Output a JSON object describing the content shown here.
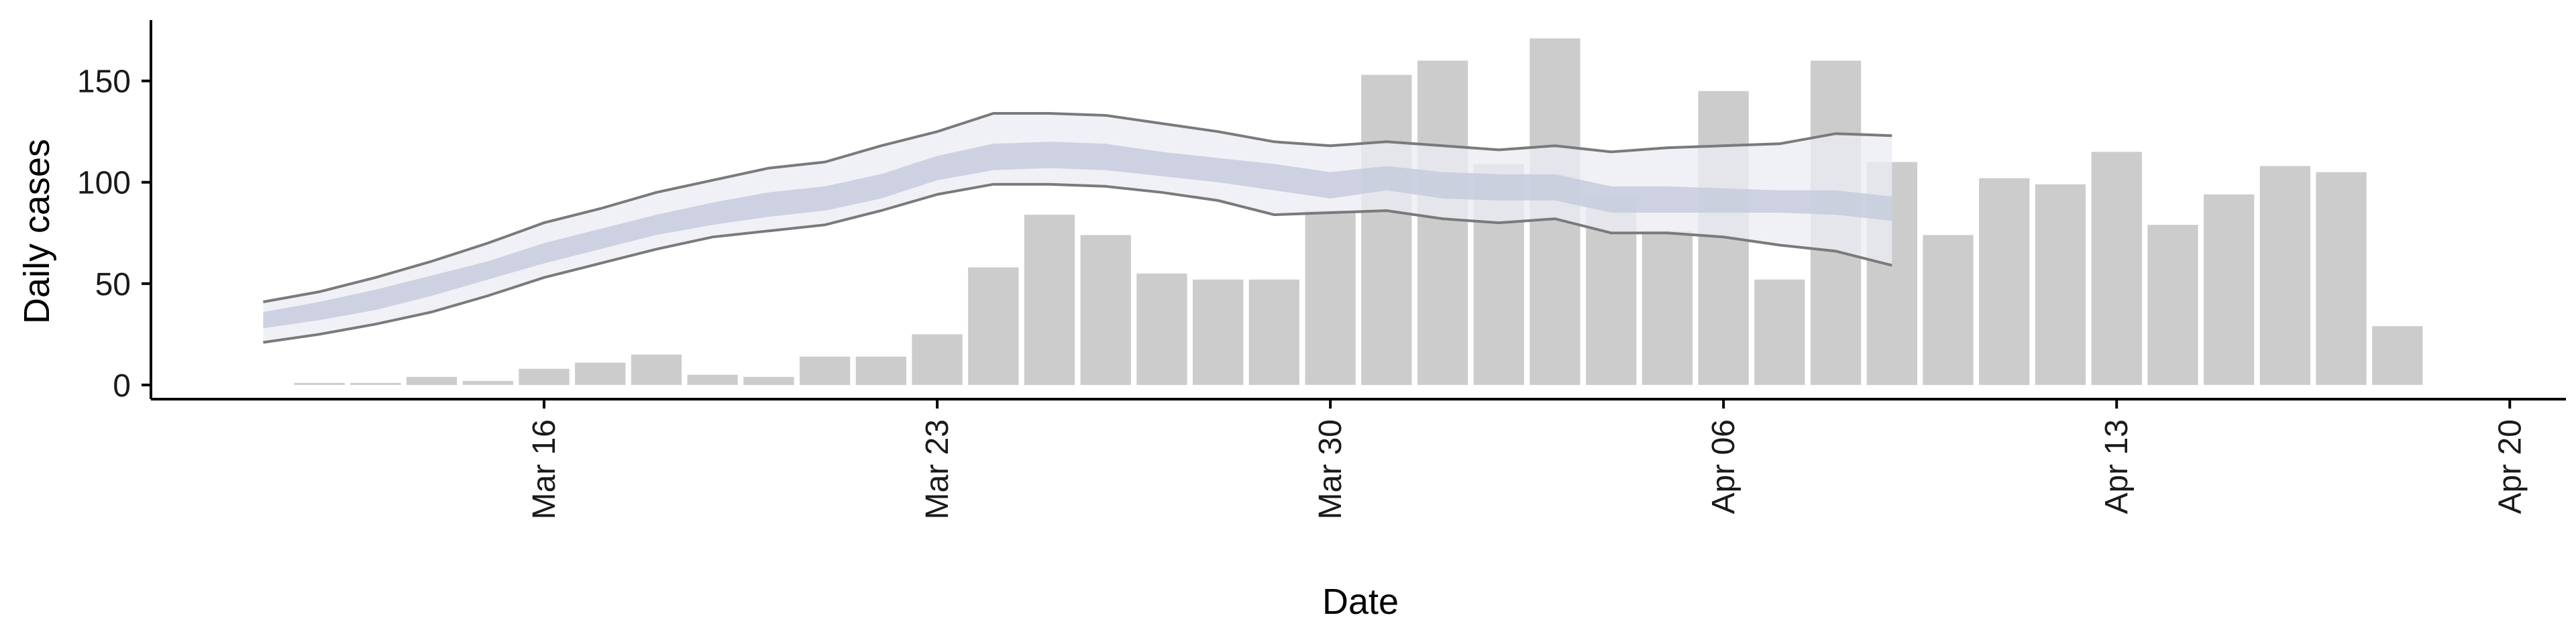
{
  "chart_data": {
    "type": "bar",
    "xlabel": "Date",
    "ylabel": "Daily cases",
    "ylim": [
      -7,
      180
    ],
    "x_axis_type": "date",
    "x_range": [
      "2020-03-09",
      "2020-04-21"
    ],
    "x_ticks": [
      {
        "date": "2020-03-16",
        "label": "Mar 16"
      },
      {
        "date": "2020-03-23",
        "label": "Mar 23"
      },
      {
        "date": "2020-03-30",
        "label": "Mar 30"
      },
      {
        "date": "2020-04-06",
        "label": "Apr 06"
      },
      {
        "date": "2020-04-13",
        "label": "Apr 13"
      },
      {
        "date": "2020-04-20",
        "label": "Apr 20"
      }
    ],
    "y_ticks": [
      0,
      50,
      100,
      150
    ],
    "grid": false,
    "colors": {
      "bars": "#cccccc",
      "outer_band": "#ecedf3",
      "inner_band": "#c7cbdd",
      "bound_lines": "#7a7a7a",
      "axis": "#000000"
    },
    "series": [
      {
        "kind": "bar",
        "x": [
          "2020-03-12",
          "2020-03-13",
          "2020-03-14",
          "2020-03-15",
          "2020-03-16",
          "2020-03-17",
          "2020-03-18",
          "2020-03-19",
          "2020-03-20",
          "2020-03-21",
          "2020-03-22",
          "2020-03-23",
          "2020-03-24",
          "2020-03-25",
          "2020-03-26",
          "2020-03-27",
          "2020-03-28",
          "2020-03-29",
          "2020-03-30",
          "2020-03-31",
          "2020-04-01",
          "2020-04-02",
          "2020-04-03",
          "2020-04-04",
          "2020-04-05",
          "2020-04-06",
          "2020-04-07",
          "2020-04-08",
          "2020-04-09",
          "2020-04-10",
          "2020-04-11",
          "2020-04-12",
          "2020-04-13",
          "2020-04-14",
          "2020-04-15",
          "2020-04-16",
          "2020-04-17",
          "2020-04-18",
          "2020-04-19"
        ],
        "values": [
          1,
          1,
          4,
          2,
          8,
          11,
          15,
          5,
          4,
          14,
          14,
          25,
          58,
          84,
          74,
          55,
          52,
          52,
          86,
          153,
          160,
          109,
          171,
          93,
          76,
          145,
          52,
          160,
          110,
          74,
          102,
          99,
          115,
          79,
          94,
          108,
          105,
          29,
          null
        ]
      },
      {
        "kind": "band",
        "x": [
          "2020-03-11",
          "2020-03-12",
          "2020-03-13",
          "2020-03-14",
          "2020-03-15",
          "2020-03-16",
          "2020-03-17",
          "2020-03-18",
          "2020-03-19",
          "2020-03-20",
          "2020-03-21",
          "2020-03-22",
          "2020-03-23",
          "2020-03-24",
          "2020-03-25",
          "2020-03-26",
          "2020-03-27",
          "2020-03-28",
          "2020-03-29",
          "2020-03-30",
          "2020-03-31",
          "2020-04-01",
          "2020-04-02",
          "2020-04-03",
          "2020-04-04",
          "2020-04-05",
          "2020-04-06",
          "2020-04-07",
          "2020-04-08",
          "2020-04-09",
          "2020-04-10"
        ],
        "lower_outer": [
          21,
          25,
          30,
          36,
          44,
          53,
          60,
          67,
          73,
          76,
          79,
          86,
          94,
          99,
          99,
          98,
          95,
          91,
          84,
          85,
          86,
          82,
          80,
          82,
          75,
          75,
          73,
          69,
          66,
          59,
          null
        ],
        "upper_outer": [
          41,
          46,
          53,
          61,
          70,
          80,
          87,
          95,
          101,
          107,
          110,
          118,
          125,
          134,
          134,
          133,
          129,
          125,
          120,
          118,
          120,
          118,
          116,
          118,
          115,
          117,
          118,
          119,
          124,
          123,
          null
        ],
        "lower_inner": [
          28,
          32,
          37,
          44,
          52,
          60,
          67,
          74,
          79,
          83,
          86,
          92,
          101,
          106,
          107,
          106,
          103,
          100,
          96,
          92,
          96,
          92,
          91,
          91,
          85,
          85,
          85,
          85,
          84,
          81,
          null
        ],
        "upper_inner": [
          36,
          41,
          47,
          54,
          61,
          70,
          77,
          84,
          90,
          95,
          98,
          104,
          113,
          119,
          120,
          119,
          115,
          112,
          109,
          105,
          108,
          105,
          104,
          104,
          98,
          98,
          97,
          96,
          96,
          93,
          null
        ]
      }
    ]
  }
}
